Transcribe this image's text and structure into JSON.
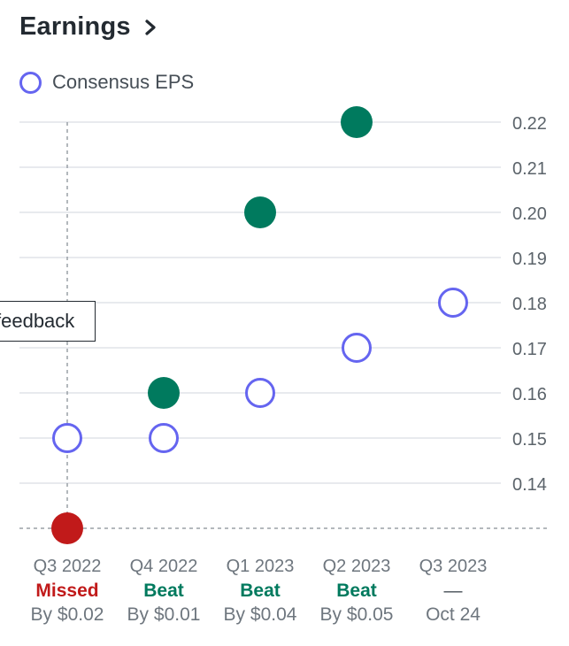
{
  "header": {
    "title": "Earnings",
    "chevron_icon": "chevron-right-icon"
  },
  "legend": {
    "label": "Consensus EPS",
    "marker_color": "#6565f0"
  },
  "feedback": {
    "label": "feedback"
  },
  "colors": {
    "beat": "#007a5e",
    "missed": "#c11a1a",
    "consensus": "#6565f0",
    "gridline": "#e0e4e9",
    "tick": "#5b636a"
  },
  "chart_data": {
    "type": "scatter",
    "categories": [
      "Q3 2022",
      "Q4 2022",
      "Q1 2023",
      "Q2 2023",
      "Q3 2023"
    ],
    "series": [
      {
        "name": "Consensus EPS",
        "values": [
          0.15,
          0.15,
          0.16,
          0.17,
          0.18
        ],
        "style": "hollow"
      },
      {
        "values": [
          0.13,
          0.16,
          0.2,
          0.22,
          null
        ],
        "style": "filled"
      }
    ],
    "results": [
      "Missed",
      "Beat",
      "Beat",
      "Beat",
      "—"
    ],
    "result_status": [
      "missed",
      "beat",
      "beat",
      "beat",
      "upcoming"
    ],
    "details": [
      "By $0.02",
      "By $0.01",
      "By $0.04",
      "By $0.05",
      "Oct 24"
    ],
    "y_ticks": [
      "0.22",
      "0.21",
      "0.20",
      "0.19",
      "0.18",
      "0.17",
      "0.16",
      "0.15",
      "0.14"
    ],
    "ylim": [
      0.13,
      0.22
    ],
    "y_axis_position": "right",
    "grid": true,
    "hovered_category": "Q3 2022",
    "legend_position": "top-left"
  }
}
